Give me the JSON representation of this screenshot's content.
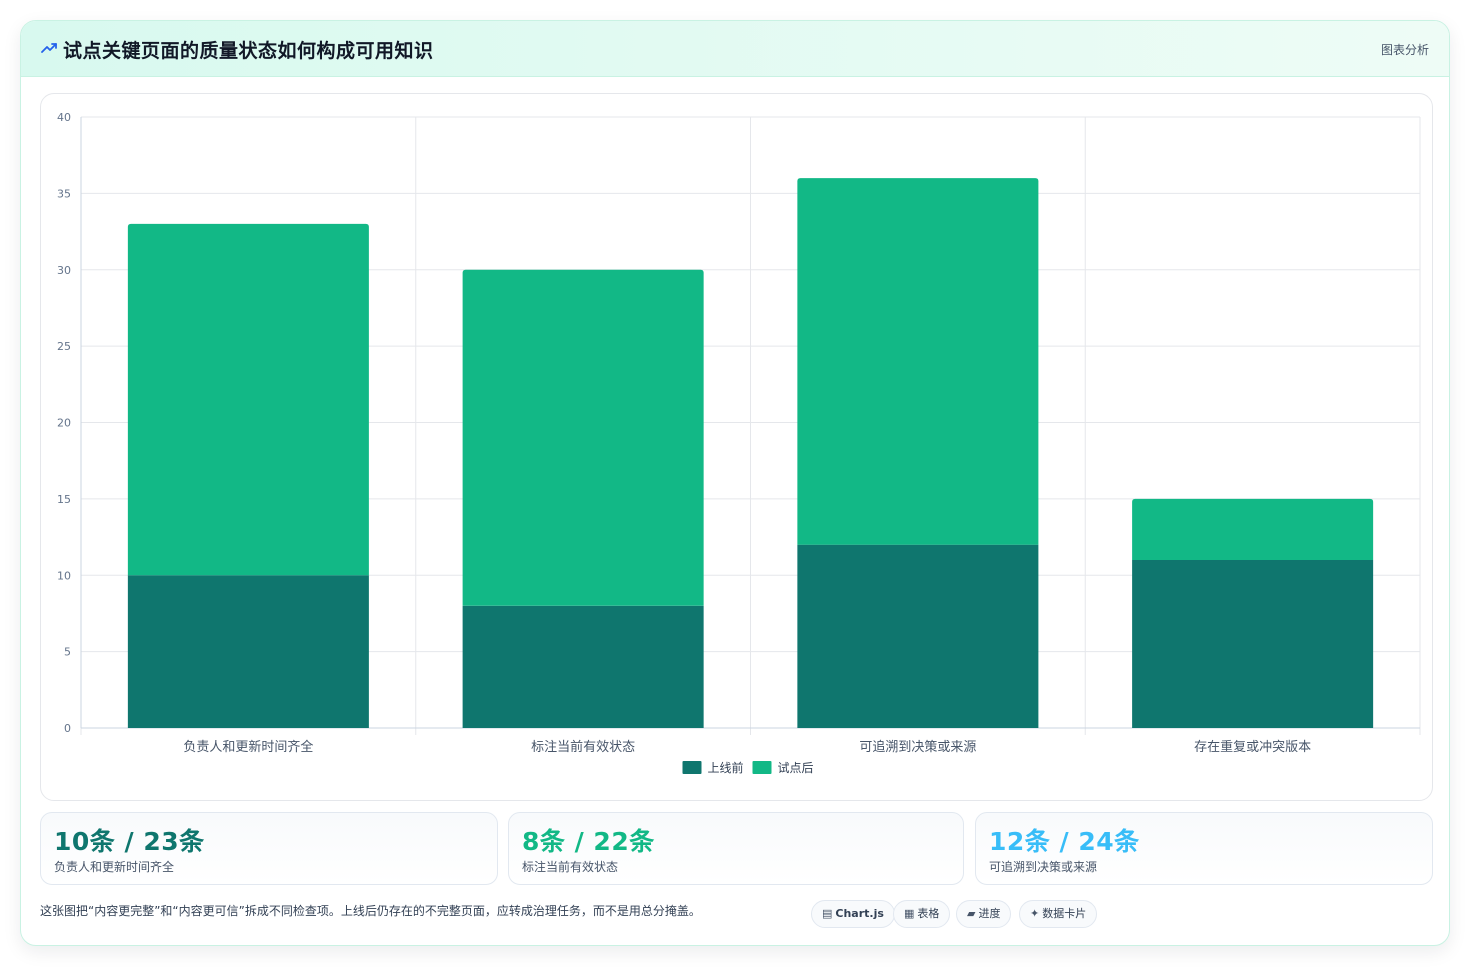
{
  "header": {
    "title": "试点关键页面的质量状态如何构成可用知识",
    "tag": "图表分析",
    "icon": "trend-icon"
  },
  "chart_data": {
    "type": "bar",
    "stacked": true,
    "categories": [
      "负责人和更新时间齐全",
      "标注当前有效状态",
      "可追溯到决策或来源",
      "存在重复或冲突版本"
    ],
    "series": [
      {
        "name": "上线前",
        "values": [
          10,
          8,
          12,
          11
        ],
        "color": "#0f766e"
      },
      {
        "name": "试点后",
        "values": [
          23,
          22,
          24,
          4
        ],
        "color": "#12b886"
      }
    ],
    "ylim": [
      0,
      40
    ],
    "yticks": [
      0,
      5,
      10,
      15,
      20,
      25,
      30,
      35,
      40
    ],
    "grid": true,
    "legend": "bottom-center"
  },
  "stats": [
    {
      "value": "10条 / 23条",
      "label": "负责人和更新时间齐全",
      "color": "#0f766e"
    },
    {
      "value": "8条 / 22条",
      "label": "标注当前有效状态",
      "color": "#12b886"
    },
    {
      "value": "12条 / 24条",
      "label": "可追溯到决策或来源",
      "color": "#38bdf8"
    }
  ],
  "note": "这张图把“内容更完整”和“内容更可信”拆成不同检查项。上线后仍存在的不完整页面，应转成治理任务，而不是用总分掩盖。",
  "chips": [
    {
      "label": "Chart.js",
      "icon": "chart-icon"
    },
    {
      "label": "表格",
      "icon": "table-icon"
    },
    {
      "label": "进度",
      "icon": "progress-icon"
    },
    {
      "label": "数据卡片",
      "icon": "sparkle-icon"
    }
  ]
}
